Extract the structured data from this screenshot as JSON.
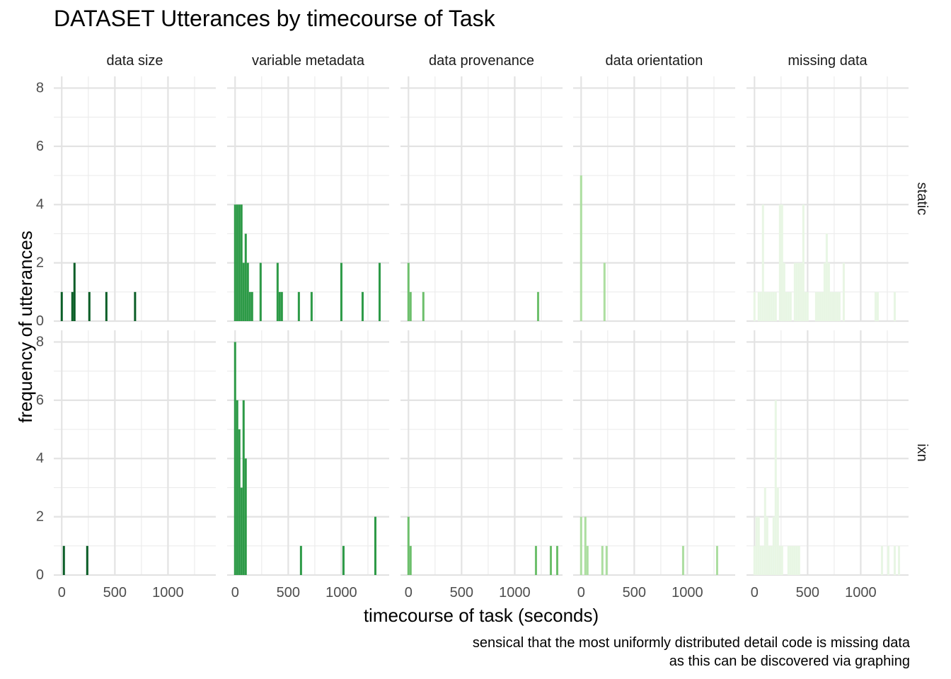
{
  "title": "DATASET Utterances by timecourse of Task",
  "caption": {
    "line1": "sensical that the most uniformly distributed detail code is missing data",
    "line2": "as this can be discovered via graphing"
  },
  "chart_data": {
    "type": "bar",
    "title": "DATASET Utterances by timecourse of Task",
    "xlabel": "timecourse of task (seconds)",
    "ylabel": "frequency of utterances",
    "xlim": [
      -75,
      1450
    ],
    "ylim": [
      0,
      8.4
    ],
    "x_ticks": [
      0,
      500,
      1000
    ],
    "y_ticks": [
      0,
      2,
      4,
      6,
      8
    ],
    "bin_width": 20,
    "grid": true,
    "columns": [
      "data size",
      "variable metadata",
      "data provenance",
      "data orientation",
      "missing data"
    ],
    "rows": [
      "static",
      "ixn"
    ],
    "colors": {
      "data size": "#0b5e27",
      "variable metadata": "#2d9a47",
      "data provenance": "#6dbf6c",
      "data orientation": "#acdea0",
      "missing data": "#e8f6e4"
    },
    "panels": [
      {
        "row": "static",
        "column": "data size",
        "bins": [
          [
            0,
            1
          ],
          [
            100,
            1
          ],
          [
            120,
            2
          ],
          [
            260,
            1
          ],
          [
            420,
            1
          ],
          [
            690,
            1
          ]
        ]
      },
      {
        "row": "static",
        "column": "variable metadata",
        "bins": [
          [
            0,
            4
          ],
          [
            20,
            4
          ],
          [
            40,
            4
          ],
          [
            60,
            4
          ],
          [
            80,
            2
          ],
          [
            100,
            3
          ],
          [
            120,
            2
          ],
          [
            140,
            1
          ],
          [
            160,
            1
          ],
          [
            240,
            2
          ],
          [
            400,
            2
          ],
          [
            420,
            1
          ],
          [
            440,
            1
          ],
          [
            600,
            1
          ],
          [
            720,
            1
          ],
          [
            1000,
            2
          ],
          [
            1200,
            1
          ],
          [
            1360,
            2
          ]
        ]
      },
      {
        "row": "static",
        "column": "data provenance",
        "bins": [
          [
            0,
            2
          ],
          [
            20,
            1
          ],
          [
            140,
            1
          ],
          [
            1220,
            1
          ]
        ]
      },
      {
        "row": "static",
        "column": "data orientation",
        "bins": [
          [
            0,
            5
          ],
          [
            220,
            2
          ]
        ]
      },
      {
        "row": "static",
        "column": "missing data",
        "bins": [
          [
            0,
            1
          ],
          [
            40,
            1
          ],
          [
            60,
            1
          ],
          [
            80,
            4
          ],
          [
            100,
            1
          ],
          [
            120,
            1
          ],
          [
            140,
            1
          ],
          [
            160,
            1
          ],
          [
            180,
            1
          ],
          [
            200,
            1
          ],
          [
            240,
            4
          ],
          [
            260,
            4
          ],
          [
            280,
            2
          ],
          [
            300,
            1
          ],
          [
            320,
            1
          ],
          [
            340,
            1
          ],
          [
            380,
            2
          ],
          [
            400,
            2
          ],
          [
            420,
            2
          ],
          [
            440,
            2
          ],
          [
            460,
            4
          ],
          [
            480,
            1
          ],
          [
            500,
            1
          ],
          [
            580,
            1
          ],
          [
            600,
            1
          ],
          [
            620,
            1
          ],
          [
            640,
            1
          ],
          [
            660,
            2
          ],
          [
            680,
            3
          ],
          [
            700,
            2
          ],
          [
            720,
            1
          ],
          [
            740,
            1
          ],
          [
            760,
            1
          ],
          [
            780,
            1
          ],
          [
            800,
            1
          ],
          [
            840,
            2
          ],
          [
            1140,
            1
          ],
          [
            1160,
            1
          ],
          [
            1320,
            1
          ]
        ]
      },
      {
        "row": "ixn",
        "column": "data size",
        "bins": [
          [
            20,
            1
          ],
          [
            240,
            1
          ]
        ]
      },
      {
        "row": "ixn",
        "column": "variable metadata",
        "bins": [
          [
            0,
            8
          ],
          [
            20,
            6
          ],
          [
            40,
            5
          ],
          [
            60,
            3
          ],
          [
            80,
            6
          ],
          [
            100,
            4
          ],
          [
            620,
            1
          ],
          [
            1020,
            1
          ],
          [
            1320,
            2
          ]
        ]
      },
      {
        "row": "ixn",
        "column": "data provenance",
        "bins": [
          [
            0,
            2
          ],
          [
            20,
            1
          ],
          [
            1200,
            1
          ],
          [
            1340,
            1
          ],
          [
            1400,
            1
          ]
        ]
      },
      {
        "row": "ixn",
        "column": "data orientation",
        "bins": [
          [
            0,
            2
          ],
          [
            40,
            2
          ],
          [
            60,
            1
          ],
          [
            200,
            1
          ],
          [
            240,
            1
          ],
          [
            960,
            1
          ],
          [
            1280,
            1
          ]
        ]
      },
      {
        "row": "ixn",
        "column": "missing data",
        "bins": [
          [
            0,
            1
          ],
          [
            20,
            2
          ],
          [
            40,
            2
          ],
          [
            60,
            1
          ],
          [
            80,
            1
          ],
          [
            100,
            3
          ],
          [
            120,
            2
          ],
          [
            140,
            1
          ],
          [
            160,
            1
          ],
          [
            180,
            2
          ],
          [
            200,
            6
          ],
          [
            220,
            3
          ],
          [
            240,
            1
          ],
          [
            260,
            1
          ],
          [
            320,
            1
          ],
          [
            340,
            1
          ],
          [
            360,
            1
          ],
          [
            380,
            1
          ],
          [
            400,
            1
          ],
          [
            420,
            1
          ],
          [
            1200,
            1
          ],
          [
            1260,
            1
          ],
          [
            1320,
            1
          ],
          [
            1360,
            1
          ]
        ]
      }
    ]
  }
}
